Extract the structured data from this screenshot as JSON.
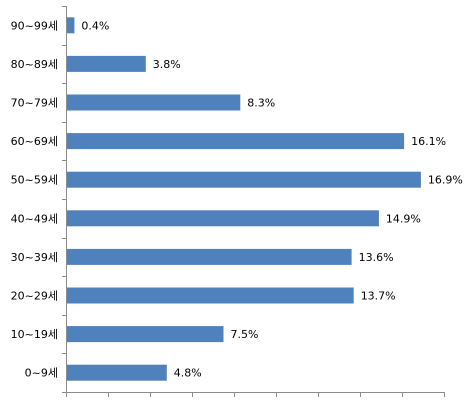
{
  "chart_data": {
    "type": "bar",
    "orientation": "horizontal",
    "title": "",
    "xlabel": "",
    "ylabel": "",
    "categories": [
      "90~99세",
      "80~89세",
      "70~79세",
      "60~69세",
      "50~59세",
      "40~49세",
      "30~39세",
      "20~29세",
      "10~19세",
      "0~9세"
    ],
    "values": [
      0.4,
      3.8,
      8.3,
      16.1,
      16.9,
      14.9,
      13.6,
      13.7,
      7.5,
      4.8
    ],
    "value_labels": [
      "0.4%",
      "3.8%",
      "8.3%",
      "16.1%",
      "16.9%",
      "14.9%",
      "13.6%",
      "13.7%",
      "7.5%",
      "4.8%"
    ],
    "xlim": [
      0,
      18
    ],
    "x_tick_count": 9,
    "grid": false,
    "legend": "none",
    "bar_color": "#4f81bd"
  }
}
